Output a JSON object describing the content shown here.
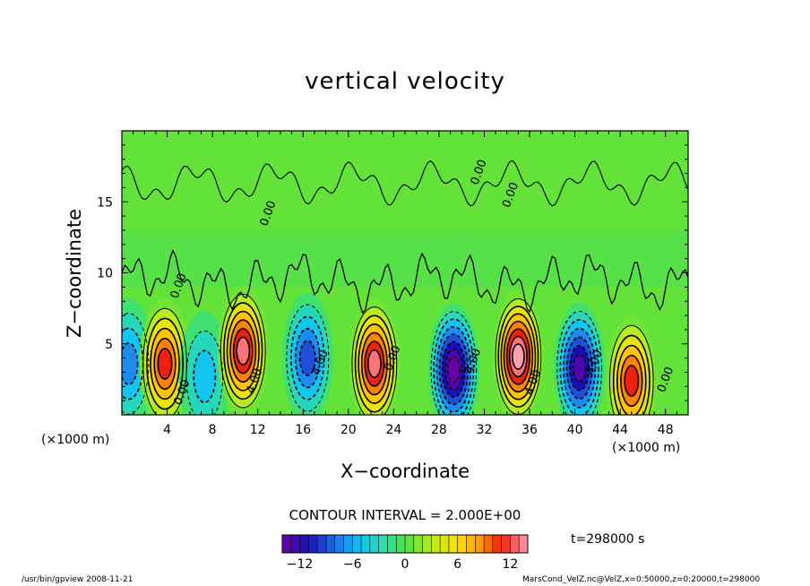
{
  "chart_data": {
    "type": "heatmap",
    "title": "vertical velocity",
    "xlabel": "X−coordinate",
    "ylabel": "Z−coordinate",
    "x_unit": "(×1000 m)",
    "x_unit_right": "(×1000 m)",
    "xlim": [
      0,
      50
    ],
    "ylim": [
      0,
      20
    ],
    "xticks": [
      4,
      8,
      12,
      16,
      20,
      24,
      28,
      32,
      36,
      40,
      44,
      48
    ],
    "yticks": [
      5,
      10,
      15
    ],
    "contour_interval_text": "CONTOUR INTERVAL = 2.000E+00",
    "colorbar": {
      "range": [
        -14,
        14
      ],
      "ticks": [
        "−12",
        "−6",
        "0",
        "6",
        "12"
      ],
      "tick_values": [
        -12,
        -6,
        0,
        6,
        12
      ]
    },
    "contour_labels": [
      {
        "text": "0.00",
        "x": 5.6,
        "y": 1.5
      },
      {
        "text": "4.00",
        "x": 12.0,
        "y": 2.3
      },
      {
        "text": "4.00",
        "x": 17.8,
        "y": 3.6
      },
      {
        "text": "0.00",
        "x": 24.2,
        "y": 3.9
      },
      {
        "text": "4.00",
        "x": 31.3,
        "y": 3.7
      },
      {
        "text": "4.00",
        "x": 36.6,
        "y": 2.2
      },
      {
        "text": "4.00",
        "x": 42.0,
        "y": 3.6
      },
      {
        "text": "0.00",
        "x": 48.3,
        "y": 2.4
      },
      {
        "text": "0.00",
        "x": 5.3,
        "y": 9.0
      },
      {
        "text": "0.00",
        "x": 13.2,
        "y": 14.1
      },
      {
        "text": "0.00",
        "x": 31.8,
        "y": 17.0
      },
      {
        "text": "0.00",
        "x": 34.6,
        "y": 15.4
      }
    ],
    "cells": [
      {
        "x": 0.6,
        "z": 3.6,
        "v": -7
      },
      {
        "x": 3.8,
        "z": 3.6,
        "v": 11
      },
      {
        "x": 7.3,
        "z": 2.7,
        "v": -5
      },
      {
        "x": 10.7,
        "z": 4.5,
        "v": 13
      },
      {
        "x": 16.4,
        "z": 4.0,
        "v": -9
      },
      {
        "x": 22.3,
        "z": 3.6,
        "v": 13
      },
      {
        "x": 29.3,
        "z": 3.2,
        "v": -15
      },
      {
        "x": 35.0,
        "z": 4.1,
        "v": 15
      },
      {
        "x": 40.4,
        "z": 3.3,
        "v": -13
      },
      {
        "x": 45.0,
        "z": 2.4,
        "v": 11
      }
    ],
    "time_label": "t=298000 s",
    "footer_left": "/usr/bin/gpview   2008-11-21",
    "footer_right": "MarsCond_VelZ.nc@VelZ,x=0:50000,z=0:20000,t=298000"
  }
}
